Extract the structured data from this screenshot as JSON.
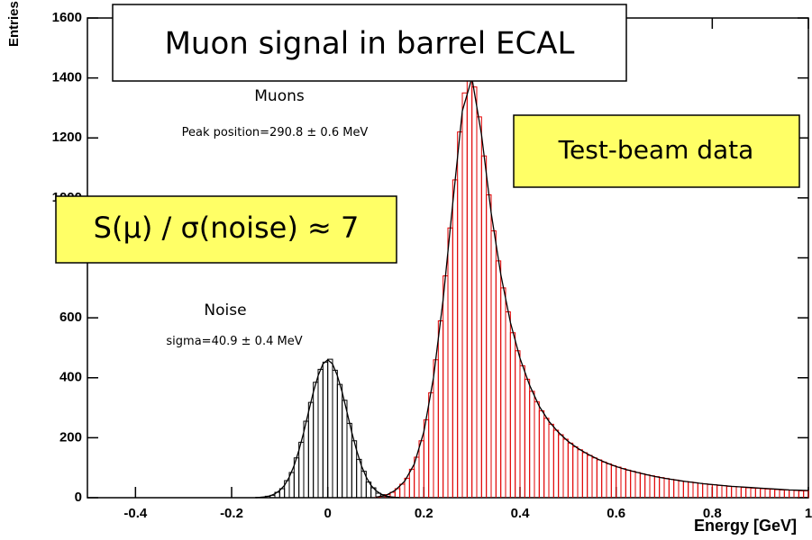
{
  "chart_data": {
    "type": "histogram",
    "title": "Muon signal in barrel ECAL",
    "x_label": "Energy [GeV]",
    "y_label": "Entries",
    "annotations": [
      "Test-beam data",
      "S(μ) / σ(noise) ≈ 7",
      "Peak position=290.8 ± 0.6 MeV",
      "sigma=40.9 ± 0.4 MeV"
    ],
    "xlim": [
      -0.5,
      1.0
    ],
    "ylim": [
      0,
      1600
    ],
    "xticks": [
      -0.4,
      -0.2,
      0,
      0.2,
      0.4,
      0.6,
      0.8,
      1
    ],
    "yticks": [
      0,
      200,
      400,
      600,
      800,
      1000,
      1200,
      1400,
      1600
    ],
    "grid": false,
    "series": [
      {
        "name": "Noise",
        "color": "#000000",
        "bins": [
          -0.15,
          -0.14,
          -0.13,
          -0.12,
          -0.11,
          -0.1,
          -0.09,
          -0.08,
          -0.07,
          -0.06,
          -0.05,
          -0.04,
          -0.03,
          -0.02,
          -0.01,
          0,
          0.01,
          0.02,
          0.03,
          0.04,
          0.05,
          0.06,
          0.07,
          0.08,
          0.09,
          0.1,
          0.11,
          0.12,
          0.13,
          0.14,
          0.15
        ],
        "values": [
          1,
          2,
          5,
          8,
          18,
          30,
          57,
          84,
          133,
          185,
          255,
          318,
          385,
          428,
          452,
          462,
          425,
          378,
          325,
          248,
          190,
          128,
          88,
          52,
          33,
          15,
          10,
          4,
          2,
          1
        ]
      },
      {
        "name": "Muons",
        "color": "#e00000",
        "bins": [
          0.1,
          0.11,
          0.12,
          0.13,
          0.14,
          0.15,
          0.16,
          0.17,
          0.18,
          0.19,
          0.2,
          0.21,
          0.22,
          0.23,
          0.24,
          0.25,
          0.26,
          0.27,
          0.28,
          0.29,
          0.3,
          0.31,
          0.32,
          0.33,
          0.34,
          0.35,
          0.36,
          0.37,
          0.38,
          0.39,
          0.4,
          0.41,
          0.42,
          0.43,
          0.44,
          0.45,
          0.46,
          0.47,
          0.48,
          0.49,
          0.5,
          0.51,
          0.52,
          0.53,
          0.54,
          0.55,
          0.56,
          0.57,
          0.58,
          0.59,
          0.6,
          0.61,
          0.62,
          0.63,
          0.64,
          0.65,
          0.66,
          0.67,
          0.68,
          0.69,
          0.7,
          0.71,
          0.72,
          0.73,
          0.74,
          0.75,
          0.76,
          0.77,
          0.78,
          0.79,
          0.8,
          0.81,
          0.82,
          0.83,
          0.84,
          0.85,
          0.86,
          0.87,
          0.88,
          0.89,
          0.9,
          0.91,
          0.92,
          0.93,
          0.94,
          0.95,
          0.96,
          0.97,
          0.98,
          0.99,
          1.0
        ],
        "values": [
          2,
          5,
          10,
          18,
          30,
          45,
          65,
          95,
          135,
          190,
          260,
          350,
          460,
          590,
          740,
          900,
          1060,
          1220,
          1350,
          1410,
          1370,
          1270,
          1140,
          1010,
          890,
          790,
          700,
          620,
          550,
          490,
          440,
          395,
          355,
          320,
          290,
          265,
          245,
          225,
          210,
          195,
          182,
          170,
          160,
          150,
          141,
          133,
          126,
          119,
          113,
          107,
          102,
          97,
          92,
          88,
          84,
          80,
          76,
          73,
          70,
          67,
          64,
          61,
          59,
          56,
          54,
          52,
          50,
          48,
          46,
          44,
          43,
          41,
          40,
          38,
          37,
          36,
          34,
          33,
          32,
          31,
          30,
          29,
          28,
          27,
          26,
          26,
          25,
          24,
          23,
          23
        ]
      }
    ],
    "fits": [
      {
        "color": "#000000",
        "x": [
          -0.15,
          -0.14,
          -0.13,
          -0.12,
          -0.11,
          -0.1,
          -0.09,
          -0.08,
          -0.07,
          -0.06,
          -0.05,
          -0.04,
          -0.03,
          -0.02,
          -0.01,
          0,
          0.01,
          0.02,
          0.03,
          0.04,
          0.05,
          0.06,
          0.07,
          0.08,
          0.09,
          0.1,
          0.11,
          0.12,
          0.13,
          0.14,
          0.15
        ],
        "values": [
          0,
          1,
          3,
          6,
          13,
          24,
          41,
          69,
          107,
          158,
          218,
          286,
          352,
          407,
          446,
          460,
          446,
          407,
          352,
          286,
          218,
          158,
          107,
          69,
          41,
          24,
          13,
          6,
          3,
          1,
          0
        ]
      },
      {
        "color": "#000000",
        "x": [
          0.1,
          0.12,
          0.14,
          0.16,
          0.18,
          0.2,
          0.22,
          0.24,
          0.26,
          0.28,
          0.3,
          0.32,
          0.34,
          0.36,
          0.38,
          0.4,
          0.42,
          0.44,
          0.46,
          0.48,
          0.5,
          0.52,
          0.54,
          0.56,
          0.58,
          0.6,
          0.62,
          0.64,
          0.66,
          0.68,
          0.7,
          0.72,
          0.74,
          0.76,
          0.78,
          0.8,
          0.82,
          0.84,
          0.86,
          0.88,
          0.9,
          0.92,
          0.94,
          0.96,
          0.98,
          1.0
        ],
        "values": [
          2,
          7,
          24,
          55,
          112,
          220,
          400,
          660,
          980,
          1290,
          1400,
          1210,
          950,
          745,
          585,
          465,
          375,
          305,
          255,
          218,
          188,
          165,
          146,
          130,
          116,
          104,
          94,
          86,
          78,
          71,
          65,
          60,
          55,
          51,
          47,
          44,
          41,
          38,
          36,
          34,
          32,
          30,
          28,
          26,
          25,
          24
        ]
      }
    ]
  }
}
